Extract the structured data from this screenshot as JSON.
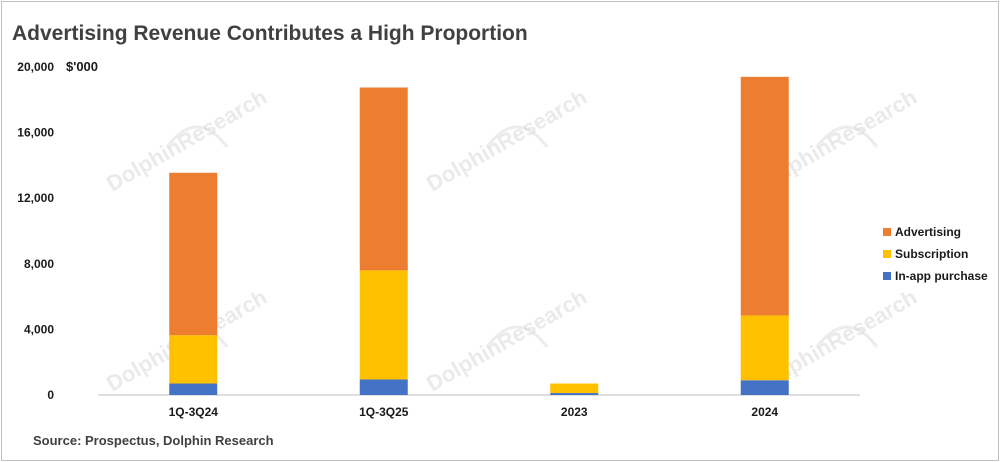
{
  "chart_data": {
    "type": "bar",
    "stacked": true,
    "title": "Advertising Revenue Contributes a High Proportion",
    "unit": "$'000",
    "source": "Source:  Prospectus, Dolphin Research",
    "watermark": "DolphinResearch",
    "categories": [
      "1Q-3Q24",
      "1Q-3Q25",
      "2023",
      "2024"
    ],
    "series": [
      {
        "name": "In-app purchase",
        "color": "#4472c4",
        "values": [
          700,
          950,
          120,
          900
        ]
      },
      {
        "name": "Subscription",
        "color": "#ffc000",
        "values": [
          2950,
          6650,
          580,
          3950
        ]
      },
      {
        "name": "Advertising",
        "color": "#ed7d31",
        "values": [
          9900,
          11150,
          0,
          14550
        ]
      }
    ],
    "legend_order": [
      "Advertising",
      "Subscription",
      "In-app purchase"
    ],
    "legend_position": "right",
    "ylim": [
      0,
      20000
    ],
    "yticks": [
      0,
      4000,
      8000,
      12000,
      16000,
      20000
    ],
    "ytick_labels": [
      "0",
      "4,000",
      "8,000",
      "12,000",
      "16,000",
      "20,000"
    ],
    "grid": false
  }
}
